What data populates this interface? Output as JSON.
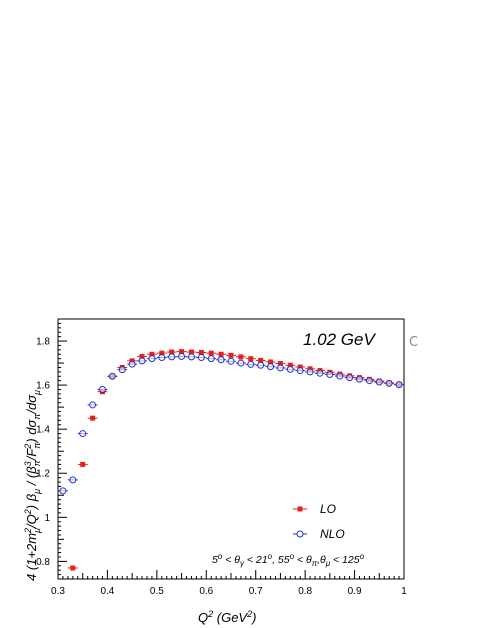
{
  "chart_data": {
    "type": "scatter",
    "xlabel": "Q^2 (GeV^2)",
    "ylabel": "4 (1+2m_μ^2/Q^2) β_μ / (β_π^3/F_π^2) dσ_π/dσ_μ",
    "xlim": [
      0.3,
      1.0
    ],
    "ylim": [
      0.72,
      1.9
    ],
    "x_ticks": [
      "0.3",
      "0.4",
      "0.5",
      "0.6",
      "0.7",
      "0.8",
      "0.9",
      "1"
    ],
    "y_ticks": [
      "0.8",
      "1",
      "1.2",
      "1.4",
      "1.6",
      "1.8"
    ],
    "energy_label": "1.02 GeV",
    "cuts_label": "5° < θγ < 21°, 55° < θπ,θμ < 125°",
    "legend_position": "bottom-right",
    "colors": {
      "LO": "#e8201a",
      "NLO": "#2433c8"
    },
    "series": [
      {
        "name": "LO",
        "marker": "filled-square",
        "x": [
          0.33,
          0.35,
          0.37,
          0.39,
          0.41,
          0.43,
          0.45,
          0.47,
          0.49,
          0.51,
          0.53,
          0.55,
          0.57,
          0.59,
          0.61,
          0.63,
          0.65,
          0.67,
          0.69,
          0.71,
          0.73,
          0.75,
          0.77,
          0.79,
          0.81,
          0.83,
          0.85,
          0.87,
          0.89,
          0.91,
          0.93,
          0.95,
          0.97,
          0.99
        ],
        "y": [
          0.77,
          1.24,
          1.45,
          1.57,
          1.64,
          1.68,
          1.71,
          1.73,
          1.74,
          1.745,
          1.75,
          1.752,
          1.75,
          1.748,
          1.745,
          1.74,
          1.735,
          1.728,
          1.72,
          1.712,
          1.705,
          1.698,
          1.69,
          1.682,
          1.674,
          1.666,
          1.658,
          1.65,
          1.642,
          1.634,
          1.626,
          1.618,
          1.61,
          1.603
        ]
      },
      {
        "name": "NLO",
        "marker": "open-circle",
        "x": [
          0.31,
          0.33,
          0.35,
          0.37,
          0.39,
          0.41,
          0.43,
          0.45,
          0.47,
          0.49,
          0.51,
          0.53,
          0.55,
          0.57,
          0.59,
          0.61,
          0.63,
          0.65,
          0.67,
          0.69,
          0.71,
          0.73,
          0.75,
          0.77,
          0.79,
          0.81,
          0.83,
          0.85,
          0.87,
          0.89,
          0.91,
          0.93,
          0.95,
          0.97,
          0.99
        ],
        "y": [
          1.12,
          1.17,
          1.38,
          1.51,
          1.58,
          1.64,
          1.67,
          1.695,
          1.71,
          1.72,
          1.725,
          1.728,
          1.73,
          1.728,
          1.725,
          1.72,
          1.715,
          1.708,
          1.7,
          1.694,
          1.69,
          1.684,
          1.678,
          1.672,
          1.666,
          1.66,
          1.654,
          1.648,
          1.641,
          1.634,
          1.627,
          1.62,
          1.614,
          1.608,
          1.602
        ]
      }
    ]
  },
  "side_glyph": "C"
}
